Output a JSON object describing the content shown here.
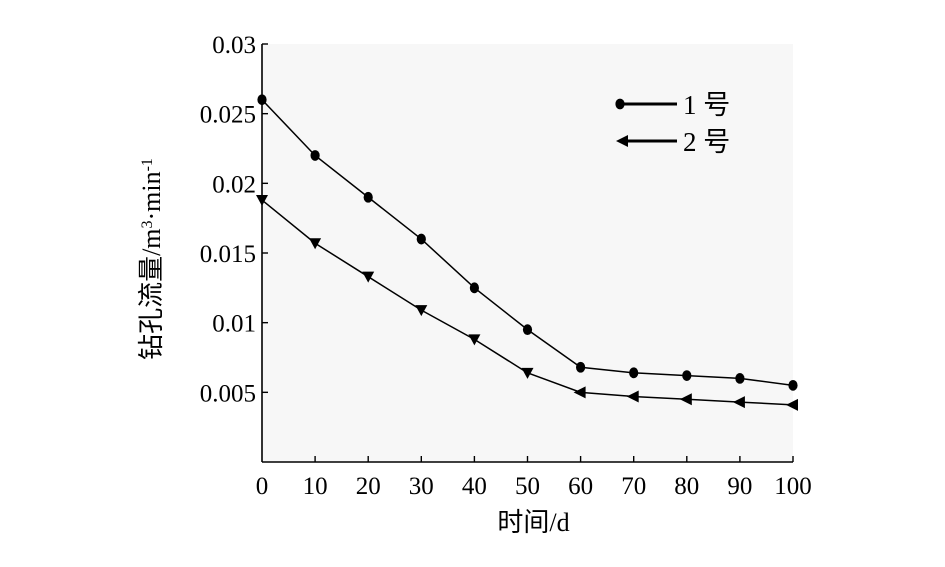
{
  "chart_data": {
    "type": "line",
    "title": "",
    "xlabel": "时间/d",
    "ylabel": "钻孔流量/m³·min⁻¹",
    "ylabel_parts": {
      "base": "钻孔流量/m",
      "sup1": "3",
      "mid": "·min",
      "sup2": "-1"
    },
    "xlim": [
      0,
      100
    ],
    "ylim": [
      0,
      0.03
    ],
    "x_ticks": [
      "0",
      "10",
      "20",
      "30",
      "40",
      "50",
      "60",
      "70",
      "80",
      "90",
      "100"
    ],
    "y_ticks": [
      "0.005",
      "0.01",
      "0.015",
      "0.02",
      "0.025",
      "0.03"
    ],
    "grid": false,
    "legend_position": "top-right",
    "x": [
      0,
      10,
      20,
      30,
      40,
      50,
      60,
      70,
      80,
      90,
      100
    ],
    "series": [
      {
        "name": "1 号",
        "marker": "circle",
        "values": [
          0.026,
          0.022,
          0.019,
          0.016,
          0.0125,
          0.0095,
          0.0068,
          0.0064,
          0.0062,
          0.006,
          0.0055
        ]
      },
      {
        "name": "2 号",
        "marker": "triangle",
        "values": [
          0.0188,
          0.0157,
          0.0133,
          0.0109,
          0.0088,
          0.0064,
          0.005,
          0.0047,
          0.0045,
          0.0043,
          0.0041
        ]
      }
    ]
  },
  "colors": {
    "line": "#000000",
    "plot_background": "#f7f7f7"
  }
}
